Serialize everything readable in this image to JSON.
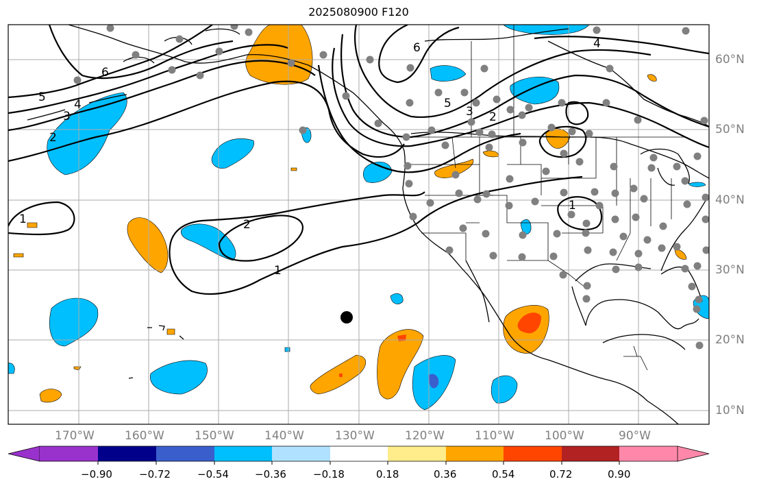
{
  "title": "2025080900 F120",
  "lon_labels": [
    "170°W",
    "160°W",
    "150°W",
    "140°W",
    "130°W",
    "120°W",
    "110°W",
    "100°W",
    "90°W"
  ],
  "lat_labels": [
    "60°N",
    "50°N",
    "40°N",
    "30°N",
    "20°N",
    "10°N"
  ],
  "colorbar": {
    "colors": [
      "#9932cc",
      "#00008b",
      "#3a5fcd",
      "#00bfff",
      "#b0e2ff",
      "#ffffff",
      "#ffec8b",
      "#ffa500",
      "#ff4500",
      "#b22222",
      "#ff88aa"
    ],
    "tick_labels": [
      "−0.90",
      "−0.72",
      "−0.54",
      "−0.36",
      "−0.18",
      "0.18",
      "0.36",
      "0.54",
      "0.72",
      "0.90"
    ]
  },
  "contour_labels": [
    "6",
    "5",
    "4",
    "3",
    "2",
    "6",
    "5",
    "3",
    "2",
    "4",
    "2",
    "1",
    "1",
    "1"
  ],
  "colors": {
    "coast": "#000000",
    "grid": "#aaaaaa",
    "station": "#808080",
    "contour": "#000000"
  }
}
